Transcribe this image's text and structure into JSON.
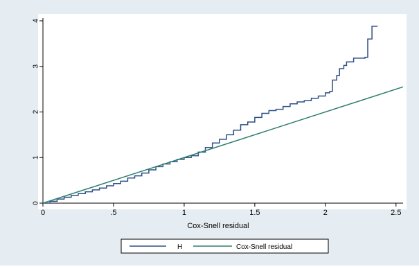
{
  "chart_data": {
    "type": "line",
    "xlabel": "Cox-Snell residual",
    "ylabel": "",
    "xlim": [
      0,
      2.55
    ],
    "ylim": [
      0,
      4
    ],
    "x_ticks": [
      0,
      0.5,
      1,
      1.5,
      2,
      2.5
    ],
    "x_tick_labels": [
      "0",
      ".5",
      "1",
      "1.5",
      "2",
      "2.5"
    ],
    "y_ticks": [
      0,
      1,
      2,
      3,
      4
    ],
    "y_tick_labels": [
      "0",
      "1",
      "2",
      "3",
      "4"
    ],
    "grid": false,
    "legend_position": "bottom",
    "colors": {
      "plot_background": "#ffffff",
      "outer_background": "#e6edf2",
      "series_H": "#2d4f86",
      "series_cs": "#2e7f6e"
    },
    "series": [
      {
        "name": "H",
        "step": true,
        "x": [
          0,
          0.05,
          0.1,
          0.15,
          0.2,
          0.25,
          0.3,
          0.35,
          0.4,
          0.45,
          0.5,
          0.55,
          0.6,
          0.65,
          0.7,
          0.75,
          0.8,
          0.85,
          0.9,
          0.95,
          1.0,
          1.05,
          1.1,
          1.15,
          1.2,
          1.25,
          1.3,
          1.35,
          1.4,
          1.45,
          1.5,
          1.55,
          1.6,
          1.65,
          1.7,
          1.75,
          1.8,
          1.85,
          1.9,
          1.95,
          2.0,
          2.03,
          2.05,
          2.08,
          2.1,
          2.13,
          2.15,
          2.2,
          2.25,
          2.28,
          2.3,
          2.33,
          2.37
        ],
        "y": [
          0,
          0.04,
          0.09,
          0.13,
          0.17,
          0.21,
          0.25,
          0.29,
          0.33,
          0.38,
          0.43,
          0.48,
          0.55,
          0.6,
          0.66,
          0.73,
          0.8,
          0.86,
          0.91,
          0.96,
          1.0,
          1.04,
          1.12,
          1.22,
          1.32,
          1.4,
          1.5,
          1.6,
          1.72,
          1.78,
          1.88,
          1.97,
          2.03,
          2.06,
          2.12,
          2.18,
          2.22,
          2.25,
          2.3,
          2.35,
          2.42,
          2.45,
          2.7,
          2.8,
          2.95,
          3.02,
          3.1,
          3.18,
          3.18,
          3.2,
          3.6,
          3.88,
          3.88
        ]
      },
      {
        "name": "Cox-Snell residual",
        "x": [
          0,
          2.55
        ],
        "y": [
          0,
          2.55
        ]
      }
    ],
    "legend": [
      "H",
      "Cox-Snell residual"
    ]
  }
}
